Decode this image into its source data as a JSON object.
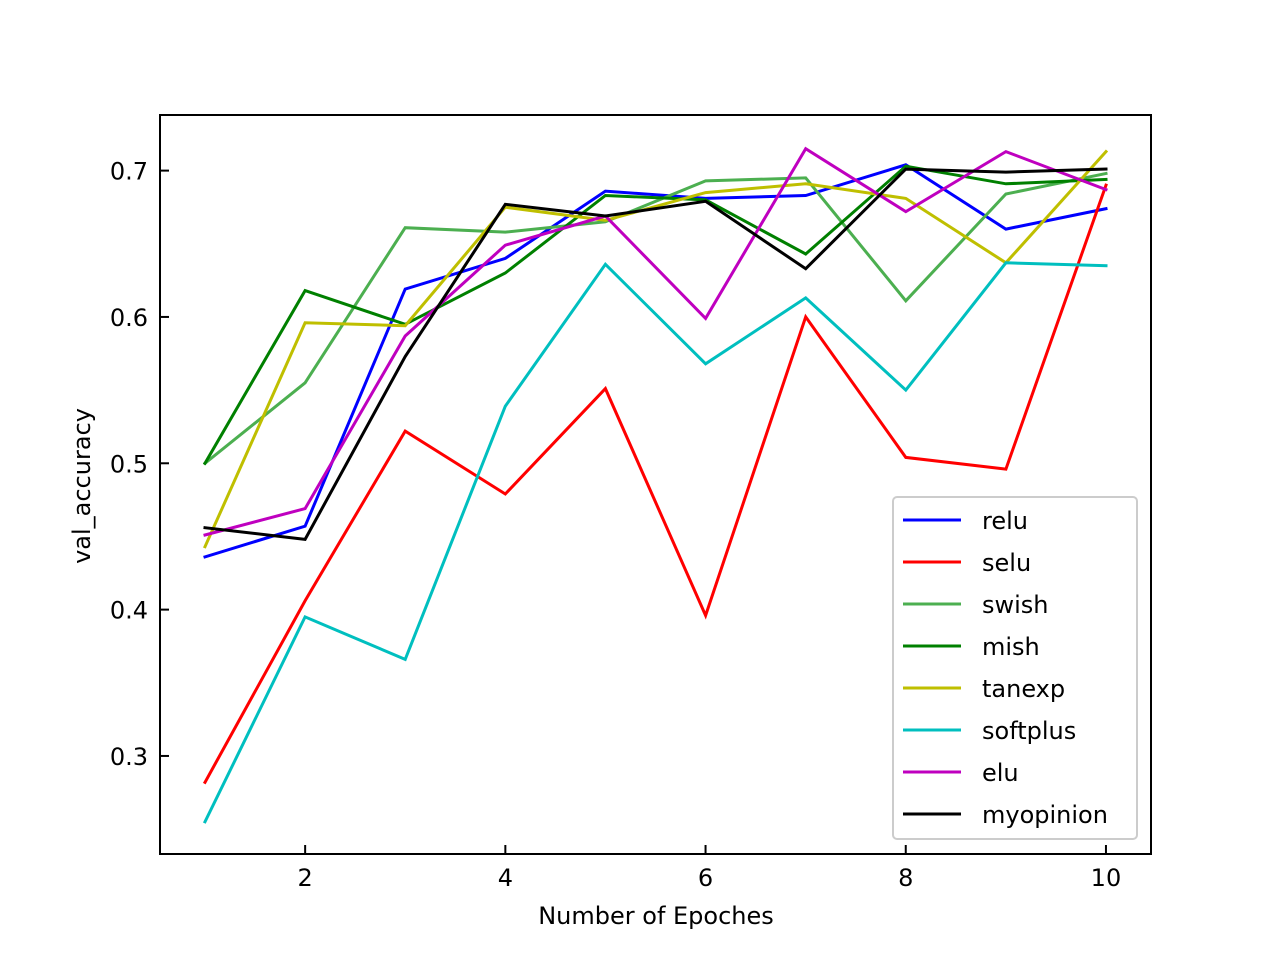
{
  "chart_data": {
    "type": "line",
    "title": "",
    "xlabel": "Number of Epoches",
    "ylabel": "val_accuracy",
    "x": [
      1,
      2,
      3,
      4,
      5,
      6,
      7,
      8,
      9,
      10
    ],
    "xlim": [
      0.55,
      10.45
    ],
    "ylim": [
      0.233,
      0.738
    ],
    "xticks": [
      2,
      4,
      6,
      8,
      10
    ],
    "yticks": [
      0.3,
      0.4,
      0.5,
      0.6,
      0.7
    ],
    "xtick_labels": [
      "2",
      "4",
      "6",
      "8",
      "10"
    ],
    "ytick_labels": [
      "0.3",
      "0.4",
      "0.5",
      "0.6",
      "0.7"
    ],
    "grid": false,
    "legend_position": "lower right",
    "series": [
      {
        "name": "relu",
        "color": "#0000ff",
        "values": [
          0.436,
          0.457,
          0.619,
          0.64,
          0.686,
          0.681,
          0.683,
          0.704,
          0.66,
          0.674
        ]
      },
      {
        "name": "selu",
        "color": "#ff0000",
        "values": [
          0.282,
          0.406,
          0.522,
          0.479,
          0.551,
          0.396,
          0.6,
          0.504,
          0.496,
          0.69
        ]
      },
      {
        "name": "swish",
        "color": "#4caf50",
        "values": [
          0.5,
          0.555,
          0.661,
          0.658,
          0.665,
          0.693,
          0.695,
          0.611,
          0.684,
          0.698
        ]
      },
      {
        "name": "mish",
        "color": "#008000",
        "values": [
          0.5,
          0.618,
          0.595,
          0.63,
          0.683,
          0.68,
          0.643,
          0.703,
          0.691,
          0.694
        ]
      },
      {
        "name": "tanexp",
        "color": "#bfbf00",
        "values": [
          0.443,
          0.596,
          0.594,
          0.675,
          0.666,
          0.685,
          0.691,
          0.681,
          0.637,
          0.713
        ]
      },
      {
        "name": "softplus",
        "color": "#00bfbf",
        "values": [
          0.255,
          0.395,
          0.366,
          0.539,
          0.636,
          0.568,
          0.613,
          0.55,
          0.637,
          0.635
        ]
      },
      {
        "name": "elu",
        "color": "#bf00bf",
        "values": [
          0.451,
          0.469,
          0.587,
          0.649,
          0.669,
          0.599,
          0.715,
          0.672,
          0.713,
          0.687
        ]
      },
      {
        "name": "myopinion",
        "color": "#000000",
        "values": [
          0.456,
          0.448,
          0.573,
          0.677,
          0.669,
          0.679,
          0.633,
          0.701,
          0.699,
          0.701
        ]
      }
    ]
  }
}
